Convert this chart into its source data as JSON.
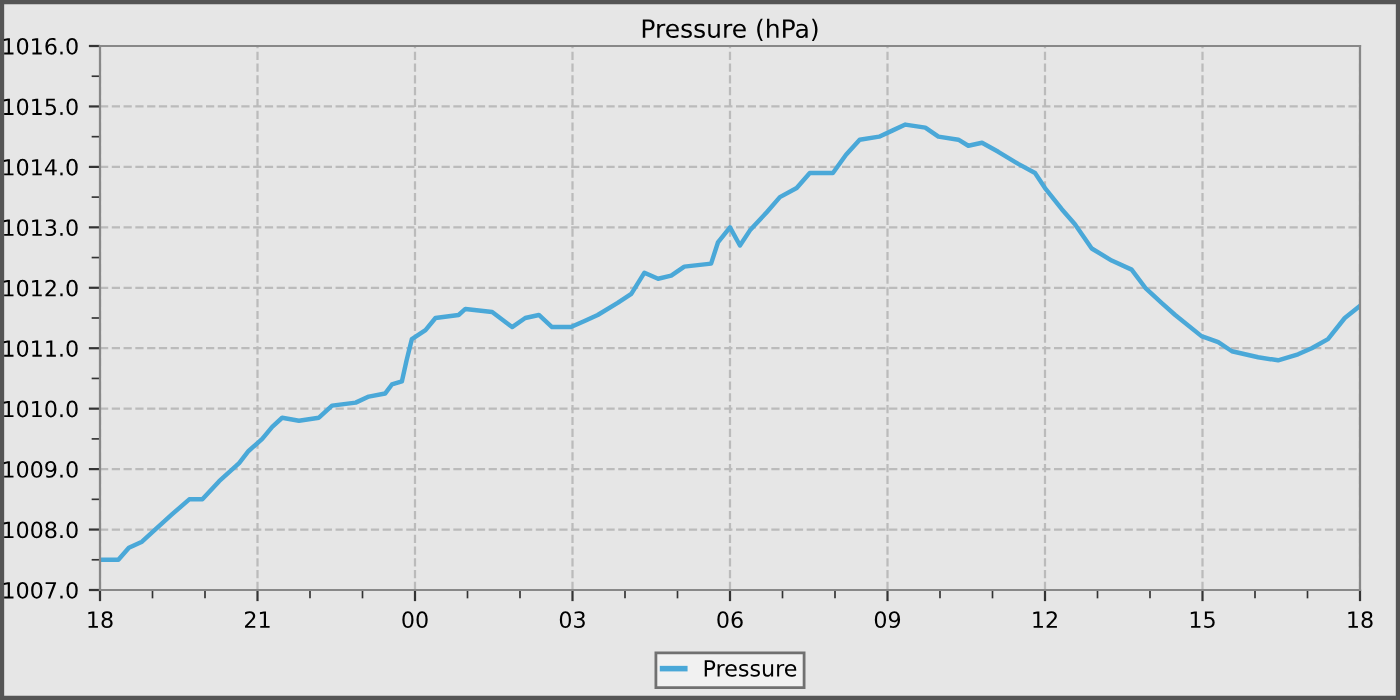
{
  "chart_data": {
    "type": "line",
    "title": "Pressure (hPa)",
    "series": [
      {
        "name": "Pressure",
        "color": "#4aa8d8",
        "x": [
          18.0,
          18.35,
          18.55,
          18.8,
          19.05,
          19.37,
          19.7,
          19.95,
          20.27,
          20.65,
          20.83,
          21.09,
          21.28,
          21.47,
          21.79,
          22.17,
          22.42,
          22.87,
          23.12,
          23.43,
          23.56,
          23.75,
          23.84,
          23.94,
          24.2,
          24.39,
          24.83,
          24.96,
          25.47,
          25.85,
          26.1,
          26.36,
          26.61,
          26.97,
          27.23,
          27.48,
          27.86,
          28.12,
          28.37,
          28.63,
          28.88,
          29.13,
          29.64,
          29.77,
          30.0,
          30.19,
          30.38,
          30.7,
          30.95,
          31.27,
          31.52,
          31.96,
          32.21,
          32.47,
          32.84,
          33.09,
          33.34,
          33.72,
          33.97,
          34.35,
          34.54,
          34.8,
          35.11,
          35.49,
          35.81,
          36.0,
          36.32,
          36.57,
          36.89,
          37.27,
          37.65,
          37.91,
          38.22,
          38.48,
          38.98,
          39.3,
          39.56,
          40.06,
          40.44,
          40.82,
          41.08,
          41.39,
          41.71,
          42.0
        ],
        "values": [
          1007.5,
          1007.5,
          1007.7,
          1007.8,
          1008.0,
          1008.25,
          1008.5,
          1008.5,
          1008.8,
          1009.1,
          1009.3,
          1009.5,
          1009.7,
          1009.85,
          1009.8,
          1009.85,
          1010.05,
          1010.1,
          1010.2,
          1010.25,
          1010.4,
          1010.45,
          1010.8,
          1011.15,
          1011.3,
          1011.5,
          1011.55,
          1011.65,
          1011.6,
          1011.35,
          1011.5,
          1011.55,
          1011.35,
          1011.35,
          1011.45,
          1011.55,
          1011.75,
          1011.9,
          1012.25,
          1012.15,
          1012.2,
          1012.35,
          1012.4,
          1012.75,
          1013.0,
          1012.7,
          1012.95,
          1013.25,
          1013.5,
          1013.65,
          1013.9,
          1013.9,
          1014.2,
          1014.45,
          1014.5,
          1014.6,
          1014.7,
          1014.65,
          1014.5,
          1014.45,
          1014.35,
          1014.4,
          1014.25,
          1014.05,
          1013.9,
          1013.65,
          1013.3,
          1013.05,
          1012.65,
          1012.45,
          1012.3,
          1012.0,
          1011.75,
          1011.55,
          1011.2,
          1011.1,
          1010.95,
          1010.85,
          1010.8,
          1010.9,
          1011.0,
          1011.15,
          1011.5,
          1011.7
        ]
      }
    ],
    "xlim": [
      18,
      42
    ],
    "xticks": [
      {
        "value": 18,
        "label": "18"
      },
      {
        "value": 19,
        "label": null
      },
      {
        "value": 20,
        "label": null
      },
      {
        "value": 21,
        "label": "21"
      },
      {
        "value": 22,
        "label": null
      },
      {
        "value": 23,
        "label": null
      },
      {
        "value": 24,
        "label": "00"
      },
      {
        "value": 25,
        "label": null
      },
      {
        "value": 26,
        "label": null
      },
      {
        "value": 27,
        "label": "03"
      },
      {
        "value": 28,
        "label": null
      },
      {
        "value": 29,
        "label": null
      },
      {
        "value": 30,
        "label": "06"
      },
      {
        "value": 31,
        "label": null
      },
      {
        "value": 32,
        "label": null
      },
      {
        "value": 33,
        "label": "09"
      },
      {
        "value": 34,
        "label": null
      },
      {
        "value": 35,
        "label": null
      },
      {
        "value": 36,
        "label": "12"
      },
      {
        "value": 37,
        "label": null
      },
      {
        "value": 38,
        "label": null
      },
      {
        "value": 39,
        "label": "15"
      },
      {
        "value": 40,
        "label": null
      },
      {
        "value": 41,
        "label": null
      },
      {
        "value": 42,
        "label": "18"
      }
    ],
    "ylim": [
      1007,
      1016
    ],
    "yticks": [
      {
        "value": 1007,
        "label": "1007.0"
      },
      {
        "value": 1007.5,
        "label": null
      },
      {
        "value": 1008,
        "label": "1008.0"
      },
      {
        "value": 1008.5,
        "label": null
      },
      {
        "value": 1009,
        "label": "1009.0"
      },
      {
        "value": 1009.5,
        "label": null
      },
      {
        "value": 1010,
        "label": "1010.0"
      },
      {
        "value": 1010.5,
        "label": null
      },
      {
        "value": 1011,
        "label": "1011.0"
      },
      {
        "value": 1011.5,
        "label": null
      },
      {
        "value": 1012,
        "label": "1012.0"
      },
      {
        "value": 1012.5,
        "label": null
      },
      {
        "value": 1013,
        "label": "1013.0"
      },
      {
        "value": 1013.5,
        "label": null
      },
      {
        "value": 1014,
        "label": "1014.0"
      },
      {
        "value": 1014.5,
        "label": null
      },
      {
        "value": 1015,
        "label": "1015.0"
      },
      {
        "value": 1015.5,
        "label": null
      },
      {
        "value": 1016,
        "label": "1016.0"
      }
    ],
    "grid": true,
    "legend": "bottom",
    "line_style": "solid"
  }
}
